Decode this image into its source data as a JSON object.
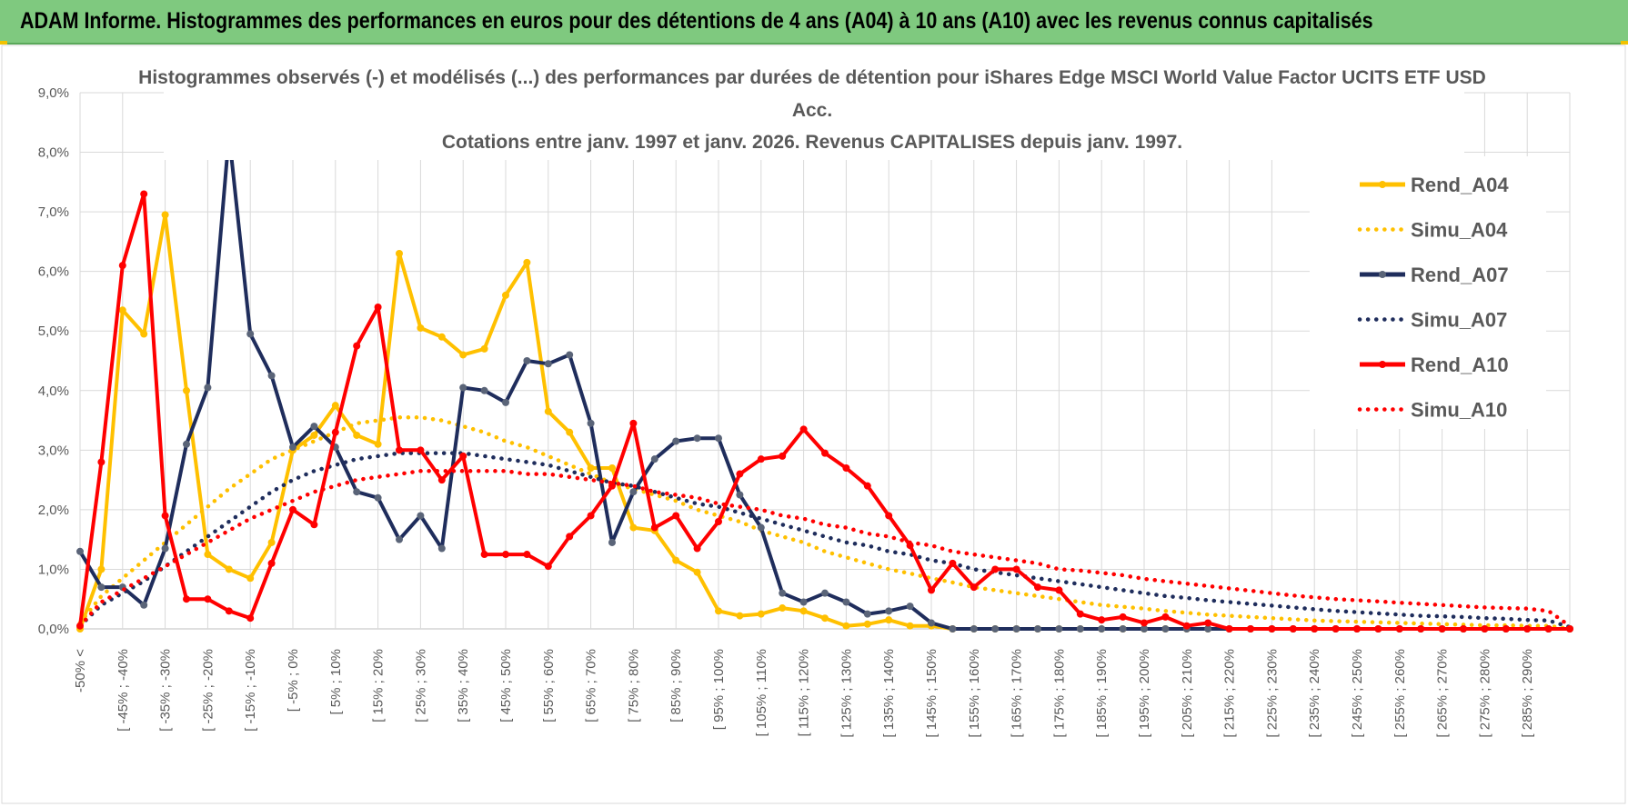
{
  "banner": {
    "title": "ADAM Informe. Histogrammes des performances en euros pour des détentions de 4 ans (A04) à 10 ans (A10) avec les revenus connus capitalisés",
    "background": "#7fc97f"
  },
  "chart_data": {
    "type": "line",
    "title_lines": [
      "Histogrammes observés (-) et modélisés (...) des performances par durées de détention pour iShares Edge MSCI World Value Factor UCITS ETF USD",
      "Acc.",
      "Cotations entre janv. 1997 et janv. 2026. Revenus CAPITALISES depuis janv. 1997."
    ],
    "xlabel": "",
    "ylabel": "",
    "ylim": [
      0,
      9
    ],
    "y_ticks": [
      "0,0%",
      "1,0%",
      "2,0%",
      "3,0%",
      "4,0%",
      "5,0%",
      "6,0%",
      "7,0%",
      "8,0%",
      "9,0%"
    ],
    "grid": true,
    "legend_position": "right",
    "categories": [
      "-50% <",
      "[ -50% ; -45%",
      "[ -45% ; -40%",
      "[ -40% ; -35%",
      "[ -35% ; -30%",
      "[ -30% ; -25%",
      "[ -25% ; -20%",
      "[ -20% ; -15%",
      "[ -15% ; -10%",
      "[ -10% ; -5%",
      "[ -5% ; 0%",
      "[ 0% ; 5%",
      "[ 5% ; 10%",
      "[ 10% ; 15%",
      "[ 15% ; 20%",
      "[ 20% ; 25%",
      "[ 25% ; 30%",
      "[ 30% ; 35%",
      "[ 35% ; 40%",
      "[ 40% ; 45%",
      "[ 45% ; 50%",
      "[ 50% ; 55%",
      "[ 55% ; 60%",
      "[ 60% ; 65%",
      "[ 65% ; 70%",
      "[ 70% ; 75%",
      "[ 75% ; 80%",
      "[ 80% ; 85%",
      "[ 85% ; 90%",
      "[ 90% ; 95%",
      "[ 95% ; 100%",
      "[ 100% ; 105%",
      "[ 105% ; 110%",
      "[ 110% ; 115%",
      "[ 115% ; 120%",
      "[ 120% ; 125%",
      "[ 125% ; 130%",
      "[ 130% ; 135%",
      "[ 135% ; 140%",
      "[ 140% ; 145%",
      "[ 145% ; 150%",
      "[ 150% ; 155%",
      "[ 155% ; 160%",
      "[ 160% ; 165%",
      "[ 165% ; 170%",
      "[ 170% ; 175%",
      "[ 175% ; 180%",
      "[ 180% ; 185%",
      "[ 185% ; 190%",
      "[ 190% ; 195%",
      "[ 195% ; 200%",
      "[ 200% ; 205%",
      "[ 205% ; 210%",
      "[ 210% ; 215%",
      "[ 215% ; 220%",
      "[ 220% ; 225%",
      "[ 225% ; 230%",
      "[ 230% ; 235%",
      "[ 235% ; 240%",
      "[ 240% ; 245%",
      "[ 245% ; 250%",
      "[ 250% ; 255%",
      "[ 255% ; 260%",
      "[ 260% ; 265%",
      "[ 265% ; 270%",
      "[ 270% ; 275%",
      "[ 275% ; 280%",
      "[ 280% ; 285%",
      "[ 285% ; 290%",
      "[ 290% ; 295%",
      "[ 295% ; 300%"
    ],
    "visible_tick_labels": [
      "-50% <",
      "[ -45% ; -40%",
      "[ -35% ; -30%",
      "[ -25% ; -20%",
      "[ -15% ; -10%",
      "[ -5% ; 0%",
      "[ 5% ; 10%",
      "[ 15% ; 20%",
      "[ 25% ; 30%",
      "[ 35% ; 40%",
      "[ 45% ; 50%",
      "[ 55% ; 60%",
      "[ 65% ; 70%",
      "[ 75% ; 80%",
      "[ 85% ; 90%",
      "[ 95% ; 100%",
      "[ 105% ; 110%",
      "[ 115% ; 120%",
      "[ 125% ; 130%",
      "[ 135% ; 140%",
      "[ 145% ; 150%",
      "[ 155% ; 160%",
      "[ 165% ; 170%",
      "[ 175% ; 180%",
      "[ 185% ; 190%",
      "[ 195% ; 200%",
      "[ 205% ; 210%",
      "[ 215% ; 220%",
      "[ 225% ; 230%",
      "[ 235% ; 240%",
      "[ 245% ; 250%",
      "[ 255% ; 260%",
      "[ 265% ; 270%",
      "[ 275% ; 280%",
      "[ 285% ; 290%"
    ],
    "series": [
      {
        "name": "Rend_A04",
        "color": "#ffc000",
        "style": "solid",
        "values": [
          0.0,
          1.0,
          5.35,
          4.95,
          6.95,
          4.0,
          1.25,
          1.0,
          0.85,
          1.45,
          3.0,
          3.25,
          3.75,
          3.25,
          3.1,
          6.3,
          5.05,
          4.9,
          4.6,
          4.7,
          5.6,
          6.15,
          3.65,
          3.3,
          2.7,
          2.7,
          1.7,
          1.65,
          1.15,
          0.95,
          0.3,
          0.22,
          0.25,
          0.35,
          0.3,
          0.18,
          0.05,
          0.08,
          0.15,
          0.05,
          0.05,
          0,
          0,
          0,
          0,
          0,
          0,
          0,
          0,
          0,
          0,
          0,
          0,
          0,
          0,
          0,
          0,
          0,
          0,
          0,
          0,
          0,
          0,
          0,
          0,
          0,
          0,
          0,
          0,
          0,
          0
        ]
      },
      {
        "name": "Simu_A04",
        "color": "#ffc000",
        "style": "dotted",
        "values": [
          0.1,
          0.55,
          0.85,
          1.15,
          1.45,
          1.75,
          2.05,
          2.35,
          2.6,
          2.85,
          3.0,
          3.15,
          3.3,
          3.45,
          3.5,
          3.55,
          3.55,
          3.5,
          3.4,
          3.3,
          3.15,
          3.05,
          2.9,
          2.75,
          2.6,
          2.45,
          2.35,
          2.25,
          2.15,
          2.0,
          1.9,
          1.8,
          1.65,
          1.55,
          1.45,
          1.3,
          1.2,
          1.1,
          1.0,
          0.93,
          0.85,
          0.78,
          0.7,
          0.65,
          0.6,
          0.55,
          0.5,
          0.45,
          0.4,
          0.37,
          0.34,
          0.3,
          0.27,
          0.24,
          0.22,
          0.2,
          0.18,
          0.16,
          0.14,
          0.13,
          0.12,
          0.11,
          0.1,
          0.09,
          0.08,
          0.07,
          0.06,
          0.06,
          0.05,
          0.05,
          0.0
        ]
      },
      {
        "name": "Rend_A07",
        "color": "#1f2d5c",
        "style": "solid",
        "values": [
          1.3,
          0.7,
          0.7,
          0.4,
          1.35,
          3.1,
          4.05,
          8.3,
          4.95,
          4.25,
          3.05,
          3.4,
          3.05,
          2.3,
          2.2,
          1.5,
          1.9,
          1.35,
          4.05,
          4.0,
          3.8,
          4.5,
          4.45,
          4.6,
          3.45,
          1.45,
          2.3,
          2.85,
          3.15,
          3.2,
          3.2,
          2.25,
          1.7,
          0.6,
          0.45,
          0.6,
          0.45,
          0.25,
          0.3,
          0.38,
          0.1,
          0.0,
          0.0,
          0.0,
          0.0,
          0.0,
          0.0,
          0.0,
          0.0,
          0.0,
          0.0,
          0.0,
          0.0,
          0.0,
          0,
          0,
          0,
          0,
          0,
          0,
          0,
          0,
          0,
          0,
          0,
          0,
          0,
          0,
          0,
          0,
          0
        ]
      },
      {
        "name": "Simu_A07",
        "color": "#1f2d5c",
        "style": "dotted",
        "values": [
          0.05,
          0.4,
          0.6,
          0.8,
          1.05,
          1.3,
          1.55,
          1.8,
          2.05,
          2.3,
          2.5,
          2.65,
          2.75,
          2.85,
          2.9,
          2.95,
          2.95,
          2.95,
          2.95,
          2.9,
          2.85,
          2.8,
          2.75,
          2.65,
          2.55,
          2.45,
          2.4,
          2.3,
          2.2,
          2.1,
          2.05,
          1.95,
          1.85,
          1.75,
          1.65,
          1.55,
          1.45,
          1.4,
          1.3,
          1.25,
          1.15,
          1.1,
          1.0,
          0.95,
          0.9,
          0.85,
          0.8,
          0.75,
          0.7,
          0.65,
          0.6,
          0.55,
          0.52,
          0.48,
          0.45,
          0.42,
          0.39,
          0.36,
          0.33,
          0.3,
          0.28,
          0.26,
          0.24,
          0.22,
          0.21,
          0.2,
          0.18,
          0.17,
          0.15,
          0.14,
          0.03
        ]
      },
      {
        "name": "Rend_A10",
        "color": "#ff0000",
        "style": "solid",
        "values": [
          0.05,
          2.8,
          6.1,
          7.3,
          1.9,
          0.5,
          0.5,
          0.3,
          0.18,
          1.1,
          2.0,
          1.75,
          3.3,
          4.75,
          5.4,
          3.0,
          3.0,
          2.5,
          2.9,
          1.25,
          1.25,
          1.25,
          1.05,
          1.55,
          1.9,
          2.4,
          3.45,
          1.7,
          1.9,
          1.35,
          1.8,
          2.6,
          2.85,
          2.9,
          3.35,
          2.95,
          2.7,
          2.4,
          1.9,
          1.4,
          0.65,
          1.1,
          0.7,
          1.0,
          1.0,
          0.7,
          0.65,
          0.25,
          0.15,
          0.2,
          0.1,
          0.2,
          0.05,
          0.1,
          0,
          0,
          0,
          0,
          0,
          0,
          0,
          0,
          0,
          0,
          0,
          0,
          0,
          0,
          0,
          0,
          0
        ]
      },
      {
        "name": "Simu_A10",
        "color": "#ff0000",
        "style": "dotted",
        "values": [
          0.05,
          0.45,
          0.65,
          0.85,
          1.05,
          1.25,
          1.45,
          1.65,
          1.85,
          2.0,
          2.15,
          2.3,
          2.4,
          2.5,
          2.55,
          2.6,
          2.65,
          2.65,
          2.65,
          2.65,
          2.65,
          2.6,
          2.6,
          2.55,
          2.5,
          2.45,
          2.4,
          2.3,
          2.25,
          2.2,
          2.1,
          2.05,
          2.0,
          1.9,
          1.85,
          1.75,
          1.7,
          1.6,
          1.55,
          1.45,
          1.4,
          1.3,
          1.25,
          1.2,
          1.15,
          1.1,
          1.0,
          0.98,
          0.94,
          0.9,
          0.84,
          0.8,
          0.76,
          0.72,
          0.68,
          0.64,
          0.6,
          0.56,
          0.53,
          0.5,
          0.48,
          0.46,
          0.44,
          0.42,
          0.4,
          0.38,
          0.36,
          0.35,
          0.34,
          0.3,
          0.05
        ]
      }
    ]
  }
}
